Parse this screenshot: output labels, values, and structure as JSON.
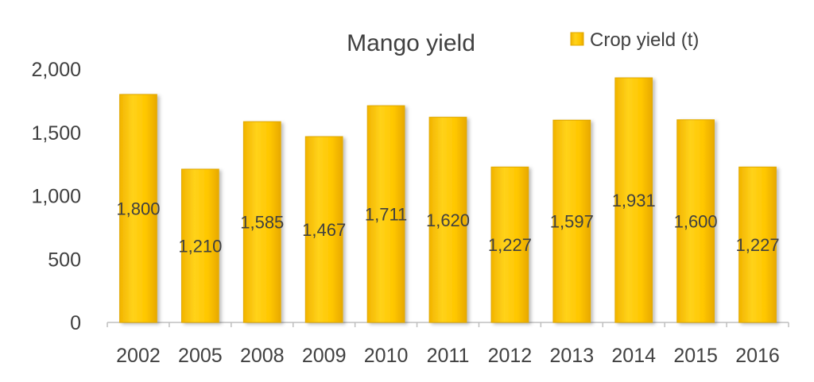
{
  "chart_data": {
    "type": "bar",
    "title": "Mango yield",
    "xlabel": "",
    "ylabel": "",
    "categories": [
      "2002",
      "2005",
      "2008",
      "2009",
      "2010",
      "2011",
      "2012",
      "2013",
      "2014",
      "2015",
      "2016"
    ],
    "series": [
      {
        "name": "Crop yield (t)",
        "values": [
          1800,
          1210,
          1585,
          1467,
          1711,
          1620,
          1227,
          1597,
          1931,
          1600,
          1227
        ],
        "data_labels": [
          "1,800",
          "1,210",
          "1,585",
          "1,467",
          "1,711",
          "1,620",
          "1,227",
          "1,597",
          "1,931",
          "1,600",
          "1,227"
        ]
      }
    ],
    "ylim": [
      0,
      2000
    ],
    "yticks": [
      0,
      500,
      1000,
      1500,
      2000
    ],
    "ytick_labels": [
      "0",
      "500",
      "1,000",
      "1,500",
      "2,000"
    ],
    "grid": false,
    "legend": "top-right",
    "colors": {
      "bar_fill": "#FFC700",
      "bar_edge": "#E0A800",
      "text": "#404040",
      "axis": "#BFBFBF"
    }
  }
}
